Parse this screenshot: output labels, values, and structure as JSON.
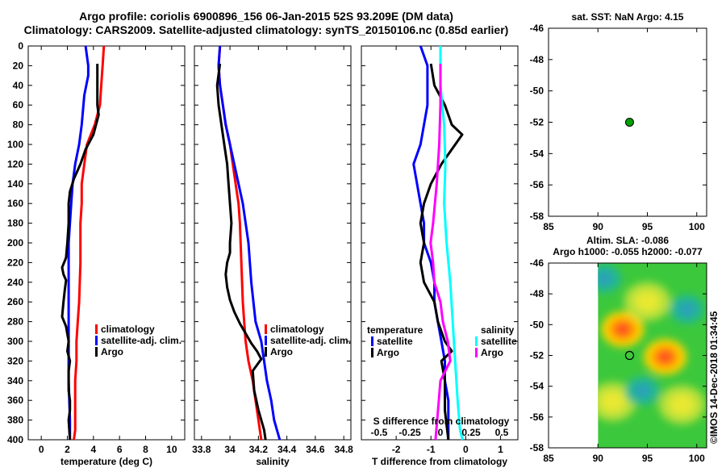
{
  "titles": {
    "line1": "Argo profile: coriolis 6900896_156 06-Jan-2015 52S 93.209E (DM data)",
    "line2": "Climatology: CARS2009. Satellite-adjusted climatology: synTS_20150106.nc (0.85d earlier)"
  },
  "colors": {
    "climatology": "#ff0000",
    "satellite": "#0000ff",
    "argo": "#000000",
    "sal_satellite": "#00ffff",
    "sal_argo": "#ff00ff",
    "map_point": "#00a000"
  },
  "chart_data": [
    {
      "type": "line",
      "name": "temperature-profile",
      "xlabel": "temperature (deg C)",
      "xlim": [
        -1,
        11
      ],
      "xticks": [
        "0",
        "2",
        "4",
        "6",
        "8",
        "10"
      ],
      "ylim": [
        0,
        400
      ],
      "yticks": [
        "0",
        "20",
        "40",
        "60",
        "80",
        "100",
        "120",
        "140",
        "160",
        "180",
        "200",
        "220",
        "240",
        "260",
        "280",
        "300",
        "320",
        "340",
        "360",
        "380",
        "400"
      ],
      "legend": [
        "climatology",
        "satellite-adj. clim.",
        "Argo"
      ],
      "series": [
        {
          "name": "climatology",
          "x": [
            4.8,
            4.7,
            4.6,
            4.5,
            4.1,
            3.5,
            3.3,
            3.1,
            3.1,
            3.0,
            3.0,
            2.9,
            2.8,
            2.7,
            2.7,
            2.6,
            2.6,
            2.6,
            2.6,
            2.5
          ],
          "y": [
            0,
            20,
            40,
            60,
            80,
            100,
            120,
            140,
            160,
            180,
            220,
            260,
            280,
            300,
            320,
            340,
            360,
            380,
            390,
            400
          ]
        },
        {
          "name": "satellite-adj. clim.",
          "x": [
            3.4,
            3.6,
            3.6,
            3.3,
            3.1,
            2.9,
            2.6,
            2.4,
            2.3,
            2.2,
            2.1,
            2.1,
            2.1,
            2.1,
            2.1,
            2.1,
            2.2,
            2.2
          ],
          "y": [
            0,
            20,
            30,
            50,
            80,
            100,
            120,
            140,
            160,
            180,
            200,
            240,
            280,
            300,
            320,
            340,
            380,
            400
          ]
        },
        {
          "name": "Argo",
          "x": [
            4.3,
            4.3,
            4.3,
            4.4,
            4.0,
            3.4,
            3.0,
            2.5,
            2.2,
            2.1,
            2.1,
            2.0,
            1.9,
            1.6,
            1.7,
            1.9,
            1.8,
            1.7,
            1.6,
            1.9,
            2.1,
            2.0,
            2.2,
            2.1,
            2.1,
            2.2,
            2.2,
            2.1,
            2.2
          ],
          "y": [
            18,
            40,
            60,
            70,
            90,
            105,
            120,
            135,
            148,
            160,
            180,
            200,
            215,
            225,
            232,
            238,
            248,
            260,
            275,
            285,
            300,
            310,
            320,
            330,
            350,
            360,
            370,
            380,
            400
          ]
        }
      ]
    },
    {
      "type": "line",
      "name": "salinity-profile",
      "xlabel": "salinity",
      "xlim": [
        33.75,
        34.85
      ],
      "xticks": [
        "33.8",
        "34",
        "34.2",
        "34.4",
        "34.6",
        "34.8"
      ],
      "ylim": [
        0,
        400
      ],
      "legend": [
        "climatology",
        "satellite-adj. clim.",
        "Argo"
      ],
      "series": [
        {
          "name": "climatology",
          "x": [
            33.93,
            33.92,
            33.93,
            33.95,
            33.97,
            34.0,
            34.02,
            34.04,
            34.06,
            34.07,
            34.08,
            34.09,
            34.1,
            34.11,
            34.13,
            34.16,
            34.18,
            34.2,
            34.21,
            34.22
          ],
          "y": [
            0,
            20,
            40,
            60,
            80,
            100,
            120,
            140,
            160,
            180,
            220,
            260,
            280,
            300,
            320,
            340,
            360,
            380,
            390,
            400
          ]
        },
        {
          "name": "satellite-adj. clim.",
          "x": [
            33.93,
            33.92,
            33.93,
            33.95,
            33.97,
            34.0,
            34.03,
            34.06,
            34.09,
            34.11,
            34.13,
            34.15,
            34.18,
            34.22,
            34.24,
            34.26,
            34.29,
            34.31,
            34.33,
            34.35
          ],
          "y": [
            0,
            20,
            40,
            60,
            80,
            100,
            120,
            140,
            160,
            180,
            200,
            240,
            280,
            300,
            320,
            340,
            360,
            380,
            390,
            400
          ]
        },
        {
          "name": "Argo",
          "x": [
            33.93,
            33.91,
            33.92,
            33.94,
            33.96,
            33.98,
            33.99,
            34.0,
            34.01,
            34.0,
            34.0,
            33.98,
            33.97,
            33.98,
            34.0,
            34.03,
            34.07,
            34.11,
            34.15,
            34.19,
            34.22,
            34.16,
            34.17,
            34.2,
            34.24,
            34.25
          ],
          "y": [
            18,
            40,
            60,
            80,
            100,
            120,
            140,
            160,
            180,
            200,
            210,
            220,
            232,
            245,
            258,
            270,
            282,
            292,
            302,
            310,
            318,
            330,
            350,
            370,
            390,
            400
          ]
        }
      ]
    },
    {
      "type": "line",
      "name": "difference-profile",
      "xlabel": "T difference from climatology",
      "xlim": [
        -3,
        1.5
      ],
      "xticks": [
        "-2",
        "-1",
        "0",
        "1"
      ],
      "top_xlabel": "S difference from climatology",
      "top_xticks": [
        "-0.5",
        "-0.25",
        "0",
        "0.25",
        "0.5"
      ],
      "ylim": [
        0,
        400
      ],
      "legend_temperature_title": "temperature",
      "legend_salinity_title": "salinity",
      "legend_temperature": [
        "satellite",
        "Argo"
      ],
      "legend_salinity": [
        "satellite",
        "Argo"
      ],
      "series": [
        {
          "name": "temperature satellite",
          "x": [
            -1.3,
            -1.1,
            -1.1,
            -1.2,
            -1.3,
            -1.5,
            -1.4,
            -1.3,
            -1.2,
            -1.2,
            -1.0,
            -0.9,
            -0.9,
            -0.8,
            -0.7,
            -0.6,
            -0.6,
            -0.5,
            -0.5
          ],
          "y": [
            0,
            20,
            60,
            80,
            100,
            120,
            140,
            160,
            180,
            200,
            220,
            240,
            260,
            280,
            300,
            320,
            340,
            360,
            400
          ]
        },
        {
          "name": "temperature Argo",
          "x": [
            -1.0,
            -0.9,
            -0.6,
            -0.4,
            -0.1,
            -0.3,
            -0.7,
            -1.0,
            -1.1,
            -1.2,
            -1.3,
            -1.2,
            -1.3,
            -1.2,
            -0.9,
            -0.8,
            -0.6,
            -0.4,
            -0.7,
            -0.6,
            -0.6,
            -0.5
          ],
          "y": [
            18,
            40,
            60,
            80,
            90,
            100,
            120,
            140,
            150,
            160,
            180,
            200,
            220,
            240,
            260,
            280,
            300,
            310,
            320,
            340,
            370,
            400
          ]
        },
        {
          "name": "salinity satellite",
          "x": [
            0.0,
            0.0,
            0.03,
            0.04,
            0.03,
            0.05,
            0.08,
            0.1,
            0.12,
            0.14,
            0.16,
            0.18
          ],
          "y": [
            0,
            40,
            80,
            120,
            160,
            200,
            240,
            280,
            320,
            360,
            390,
            400
          ]
        },
        {
          "name": "salinity Argo",
          "x": [
            0.0,
            0.0,
            -0.01,
            -0.03,
            -0.06,
            -0.08,
            -0.06,
            -0.05,
            0.0,
            0.02,
            0.06,
            0.08,
            0.0,
            -0.02,
            -0.04
          ],
          "y": [
            18,
            60,
            100,
            140,
            180,
            200,
            220,
            240,
            260,
            280,
            300,
            320,
            340,
            370,
            400
          ]
        }
      ]
    },
    {
      "type": "scatter",
      "name": "sst-map",
      "title": "sat. SST: NaN Argo: 4.15",
      "xlim": [
        85,
        101
      ],
      "ylim": [
        -58,
        -46
      ],
      "xticks": [
        "85",
        "90",
        "95",
        "100"
      ],
      "yticks": [
        "-46",
        "-48",
        "-50",
        "-52",
        "-54",
        "-56",
        "-58"
      ],
      "points": [
        {
          "x": 93.2,
          "y": -52
        }
      ]
    },
    {
      "type": "heatmap",
      "name": "sla-map",
      "title_line1": "Altim. SLA: -0.086",
      "title_line2": "Argo h1000: -0.055 h2000: -0.077",
      "xlim": [
        85,
        101
      ],
      "ylim": [
        -58,
        -46
      ],
      "xticks": [
        "85",
        "90",
        "95",
        "100"
      ],
      "yticks": [
        "-46",
        "-48",
        "-50",
        "-52",
        "-54",
        "-56",
        "-58"
      ],
      "field_xlim": [
        90,
        101
      ],
      "points": [
        {
          "x": 93.2,
          "y": -52
        }
      ],
      "blobs": [
        {
          "x": 92.5,
          "y": -50.3,
          "kind": "high"
        },
        {
          "x": 96.8,
          "y": -52.1,
          "kind": "high"
        },
        {
          "x": 95.0,
          "y": -48.5,
          "kind": "mid"
        },
        {
          "x": 91.5,
          "y": -55.0,
          "kind": "mid"
        },
        {
          "x": 98.5,
          "y": -55.2,
          "kind": "mid"
        },
        {
          "x": 94.5,
          "y": -54.3,
          "kind": "low"
        },
        {
          "x": 99.0,
          "y": -49.0,
          "kind": "low"
        },
        {
          "x": 90.6,
          "y": -47.0,
          "kind": "low"
        }
      ]
    }
  ],
  "watermark": "©IMOS 14-Dec-2018 01:34:45"
}
